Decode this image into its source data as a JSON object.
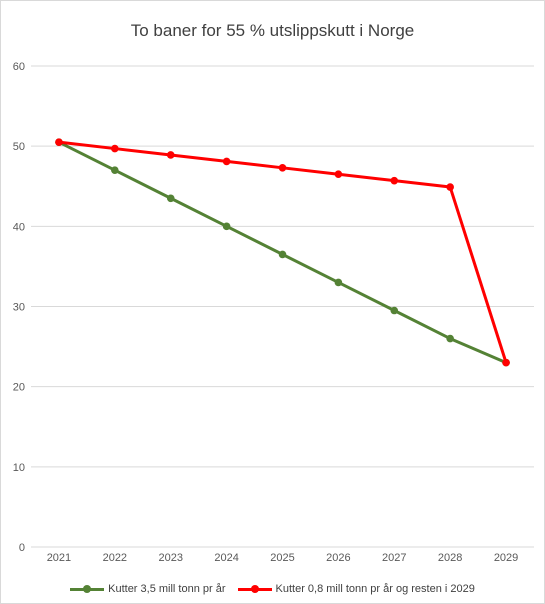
{
  "chart_data": {
    "type": "line",
    "title": "To baner for 55 % utslippskutt i Norge",
    "xlabel": "",
    "ylabel": "",
    "ylim": [
      0,
      60
    ],
    "yticks": [
      0,
      10,
      20,
      30,
      40,
      50,
      60
    ],
    "grid": true,
    "legend_position": "bottom",
    "categories": [
      "2021",
      "2022",
      "2023",
      "2024",
      "2025",
      "2026",
      "2027",
      "2028",
      "2029"
    ],
    "series": [
      {
        "name": "Kutter 3,5 mill tonn pr år",
        "color": "#548235",
        "values": [
          50.5,
          47,
          43.5,
          40,
          36.5,
          33,
          29.5,
          26,
          23
        ]
      },
      {
        "name": "Kutter 0,8 mill tonn pr år og resten i 2029",
        "color": "#ff0000",
        "values": [
          50.5,
          49.7,
          48.9,
          48.1,
          47.3,
          46.5,
          45.7,
          44.9,
          23
        ]
      }
    ]
  }
}
